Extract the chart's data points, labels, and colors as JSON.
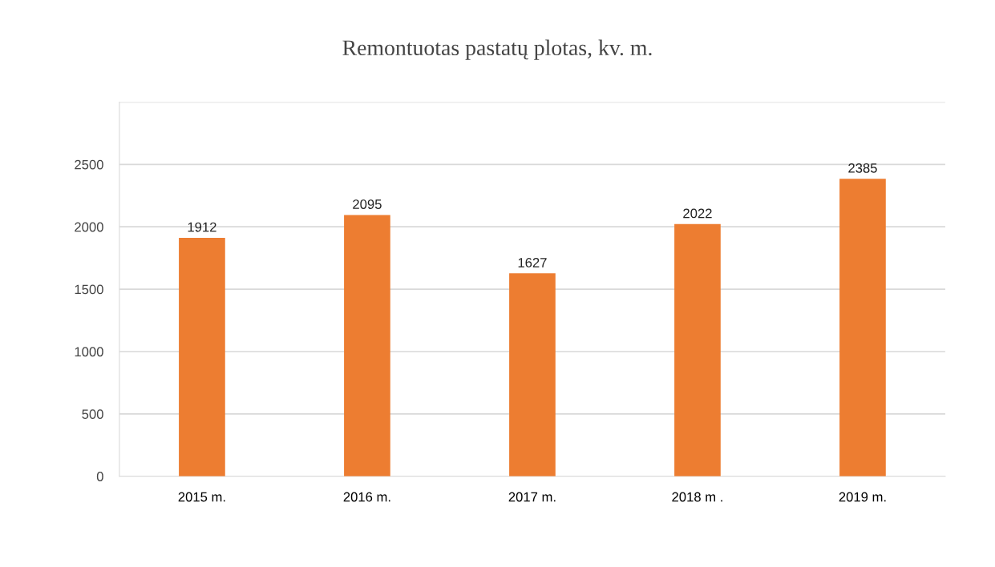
{
  "chart_data": {
    "type": "bar",
    "title": "Remontuotas pastatų plotas, kv. m.",
    "categories": [
      "2015 m.",
      "2016 m.",
      "2017 m.",
      "2018 m .",
      "2019 m."
    ],
    "values": [
      1912,
      2095,
      1627,
      2022,
      2385
    ],
    "color": "#ed7d31",
    "ylim": [
      0,
      3000
    ],
    "yticks": [
      0,
      500,
      1000,
      1500,
      2000,
      2500,
      {
        "value": 3000,
        "label": null
      }
    ],
    "grid": "y",
    "data_labels": true
  }
}
